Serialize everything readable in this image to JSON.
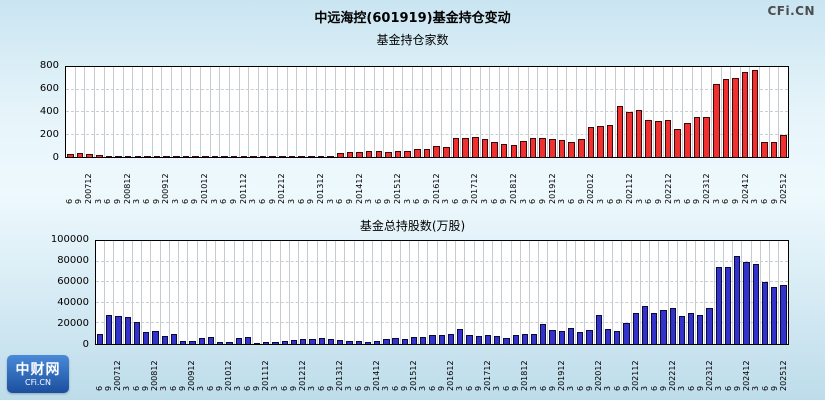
{
  "title": "中远海控(601919)基金持仓变动",
  "branding": {
    "top_right": "CFi.CN",
    "logo_main": "中财网",
    "logo_sub": "CFi.CN"
  },
  "colors": {
    "funds_bar": "#f03030",
    "funds_bar_border": "#3c0a0a",
    "shares_bar": "#3333cc",
    "shares_bar_border": "#0a0a3c",
    "background_top": "#c9e5f1",
    "background_bottom": "#bddcea"
  },
  "chart_data": [
    {
      "type": "bar",
      "title": "基金持仓家数",
      "xlabel": "",
      "ylabel": "",
      "ylim": [
        0,
        800
      ],
      "yticks": [
        0,
        200,
        400,
        600,
        800
      ],
      "grid": "vertical-and-dashed-horizontal",
      "legend": "none",
      "bar_color": "#f03030",
      "bar_border": "#3c0a0a",
      "categories": [
        "6",
        "9",
        "200712",
        "3",
        "6",
        "9",
        "200812",
        "3",
        "6",
        "9",
        "200912",
        "3",
        "6",
        "9",
        "201012",
        "3",
        "6",
        "9",
        "201112",
        "3",
        "6",
        "9",
        "201212",
        "3",
        "6",
        "9",
        "201312",
        "3",
        "6",
        "9",
        "201412",
        "3",
        "6",
        "9",
        "201512",
        "3",
        "6",
        "9",
        "201612",
        "3",
        "6",
        "9",
        "201712",
        "3",
        "6",
        "9",
        "201812",
        "3",
        "6",
        "9",
        "201912",
        "3",
        "6",
        "9",
        "202012",
        "3",
        "6",
        "9",
        "202112",
        "3",
        "6",
        "9",
        "202212",
        "3",
        "6",
        "9",
        "202312",
        "3",
        "6",
        "9",
        "202412",
        "3",
        "6",
        "9",
        "202512"
      ],
      "values": [
        30,
        35,
        28,
        15,
        10,
        8,
        10,
        8,
        6,
        5,
        5,
        5,
        5,
        4,
        5,
        5,
        4,
        4,
        4,
        4,
        3,
        3,
        5,
        5,
        4,
        5,
        8,
        10,
        40,
        45,
        45,
        50,
        55,
        45,
        50,
        55,
        70,
        75,
        100,
        90,
        170,
        170,
        175,
        160,
        130,
        120,
        110,
        140,
        170,
        165,
        160,
        155,
        130,
        160,
        270,
        280,
        285,
        450,
        400,
        420,
        330,
        320,
        330,
        250,
        300,
        360,
        360,
        650,
        690,
        700,
        760,
        770,
        130,
        130,
        200
      ]
    },
    {
      "type": "bar",
      "title": "基金总持股数(万股)",
      "xlabel": "",
      "ylabel": "",
      "ylim": [
        0,
        100000
      ],
      "yticks": [
        0,
        20000,
        40000,
        60000,
        80000,
        100000
      ],
      "grid": "vertical-and-dashed-horizontal",
      "legend": "none",
      "bar_color": "#3333cc",
      "bar_border": "#0a0a3c",
      "categories": [
        "6",
        "9",
        "200712",
        "3",
        "6",
        "9",
        "200812",
        "3",
        "6",
        "9",
        "200912",
        "3",
        "6",
        "9",
        "201012",
        "3",
        "6",
        "9",
        "201112",
        "3",
        "6",
        "9",
        "201212",
        "3",
        "6",
        "9",
        "201312",
        "3",
        "6",
        "9",
        "201412",
        "3",
        "6",
        "9",
        "201512",
        "3",
        "6",
        "9",
        "201612",
        "3",
        "6",
        "9",
        "201712",
        "3",
        "6",
        "9",
        "201812",
        "3",
        "6",
        "9",
        "201912",
        "3",
        "6",
        "9",
        "202012",
        "3",
        "6",
        "9",
        "202112",
        "3",
        "6",
        "9",
        "202212",
        "3",
        "6",
        "9",
        "202312",
        "3",
        "6",
        "9",
        "202412",
        "3",
        "6",
        "9",
        "202512"
      ],
      "values": [
        10000,
        28000,
        27500,
        26500,
        21000,
        12000,
        13000,
        8000,
        9500,
        3000,
        2500,
        6000,
        7000,
        1500,
        2000,
        5500,
        6500,
        1000,
        1500,
        2000,
        2500,
        3500,
        4500,
        5000,
        5500,
        5000,
        4000,
        3000,
        2500,
        2000,
        2500,
        4500,
        5500,
        5000,
        6500,
        7000,
        9000,
        8500,
        9500,
        15000,
        9000,
        8000,
        9000,
        8000,
        6000,
        9000,
        10000,
        10000,
        19000,
        14000,
        13000,
        16000,
        12000,
        14000,
        28000,
        15000,
        13000,
        20000,
        30000,
        37000,
        30000,
        33000,
        35000,
        27000,
        30000,
        28000,
        35000,
        75000,
        75000,
        85000,
        80000,
        78000,
        60000,
        55000,
        57000
      ]
    }
  ]
}
